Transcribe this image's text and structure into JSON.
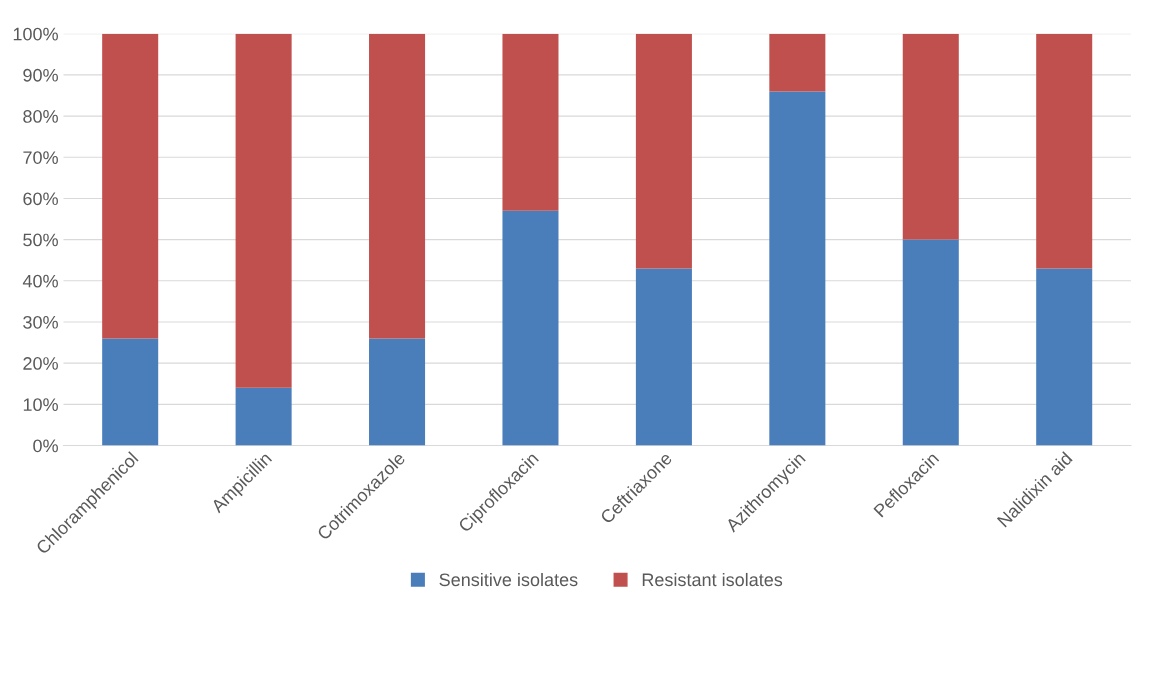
{
  "chart_data": {
    "type": "bar",
    "stacked": true,
    "categories": [
      "Chloramphenicol",
      "Ampicillin",
      "Cotrimoxazole",
      "Ciprofloxacin",
      "Ceftriaxone",
      "Azithromycin",
      "Pefloxacin",
      "Nalidixin aid"
    ],
    "series": [
      {
        "name": "Sensitive isolates",
        "color": "#4a7ebb",
        "values": [
          26,
          14,
          26,
          57,
          43,
          86,
          50,
          43
        ]
      },
      {
        "name": "Resistant isolates",
        "color": "#c0504d",
        "values": [
          74,
          86,
          74,
          43,
          57,
          14,
          50,
          57
        ]
      }
    ],
    "ylim": [
      0,
      100
    ],
    "yticks": [
      {
        "value": 0,
        "label": "0%"
      },
      {
        "value": 10,
        "label": "10%"
      },
      {
        "value": 20,
        "label": "20%"
      },
      {
        "value": 30,
        "label": "30%"
      },
      {
        "value": 40,
        "label": "40%"
      },
      {
        "value": 50,
        "label": "50%"
      },
      {
        "value": 60,
        "label": "60%"
      },
      {
        "value": 70,
        "label": "70%"
      },
      {
        "value": 80,
        "label": "80%"
      },
      {
        "value": 90,
        "label": "90%"
      },
      {
        "value": 100,
        "label": "100%"
      }
    ],
    "grid": "y",
    "legend": "bottom"
  }
}
